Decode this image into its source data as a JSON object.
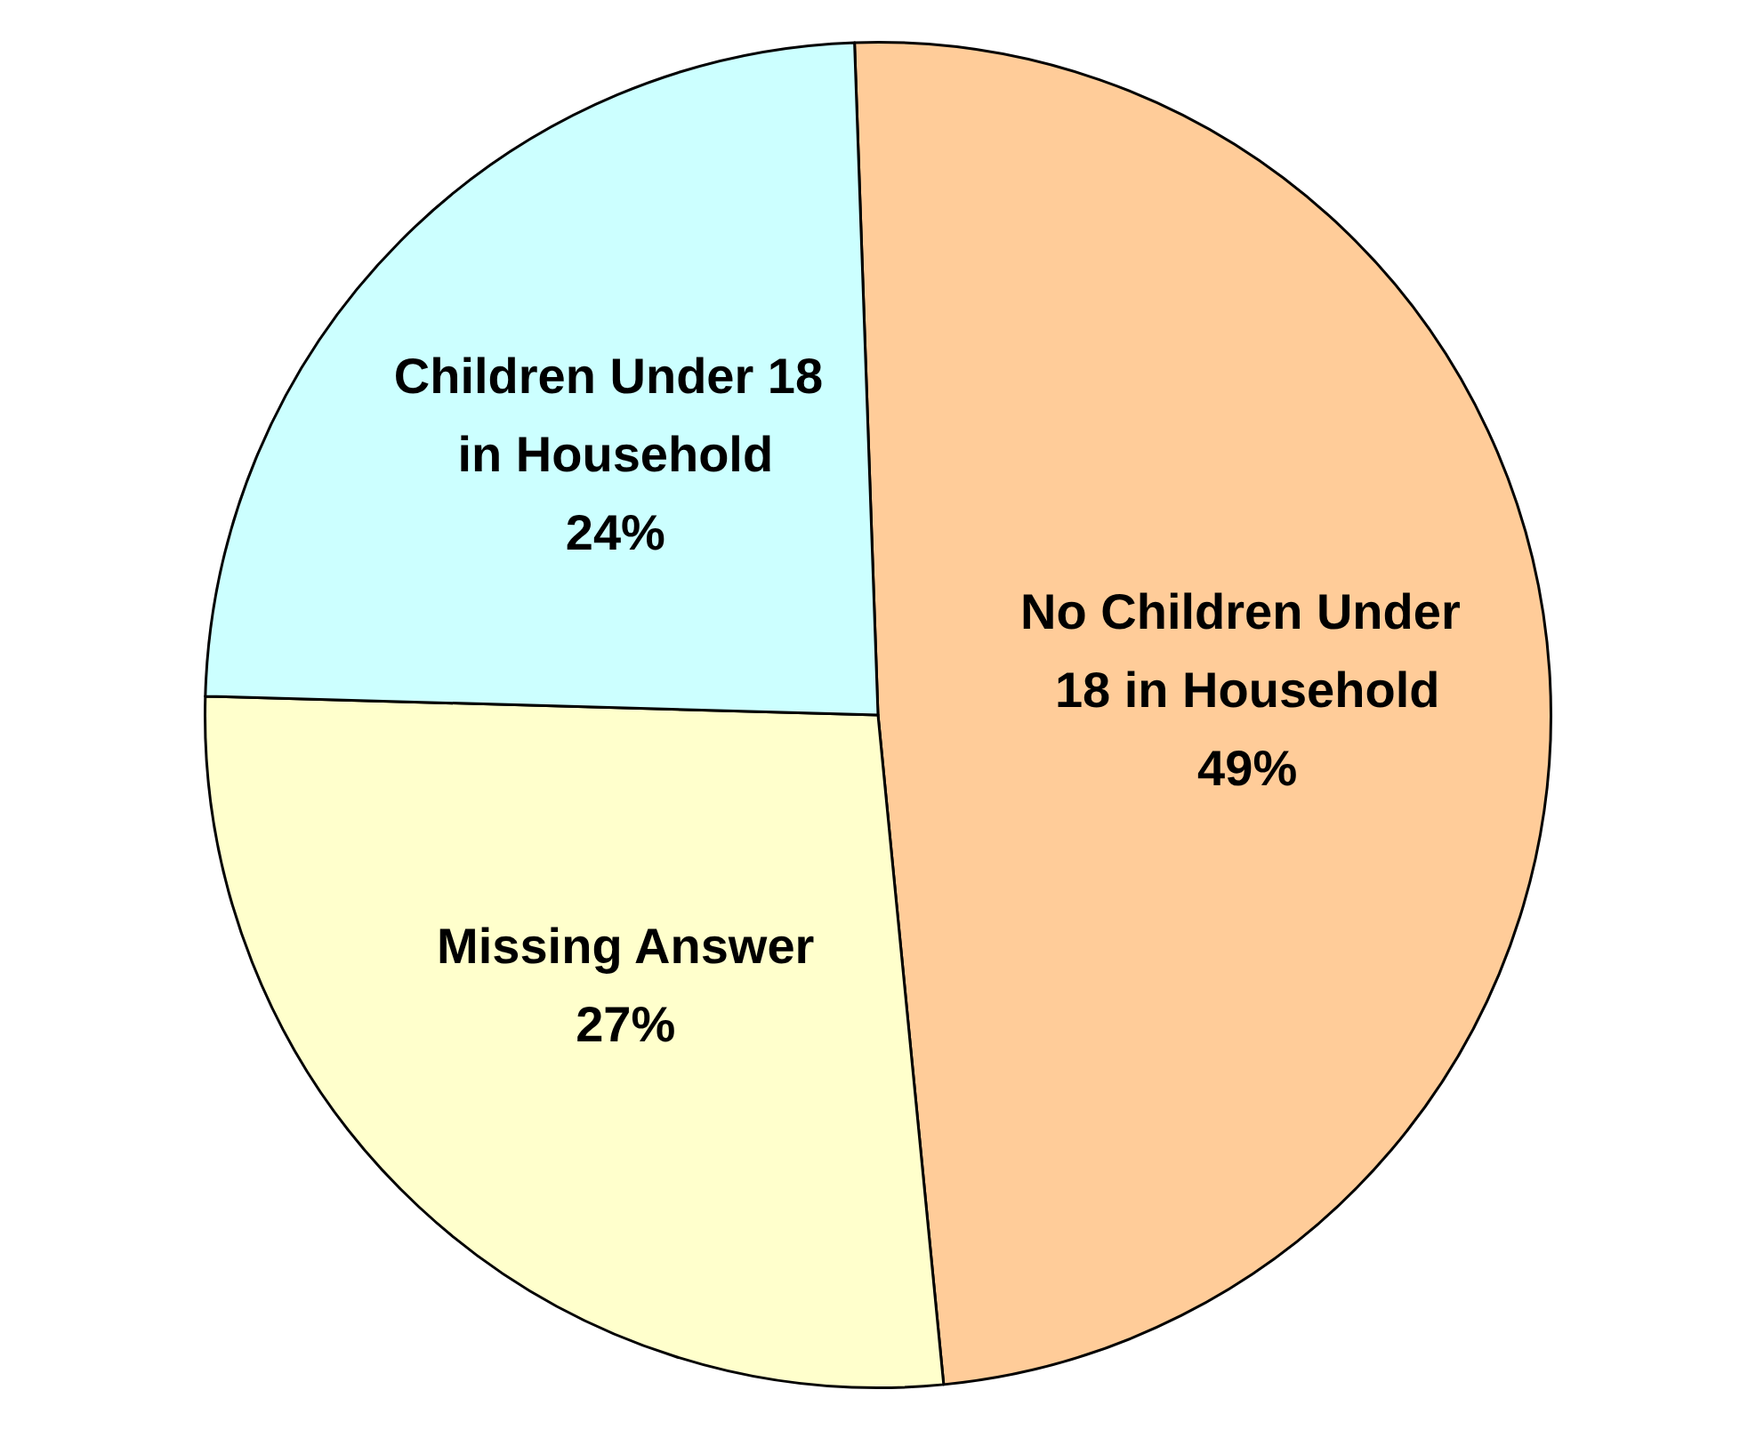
{
  "chart_data": {
    "type": "pie",
    "categories": [
      "No Children Under 18 in Household",
      "Missing Answer",
      "Children Under 18 in Household"
    ],
    "values": [
      49,
      27,
      24
    ],
    "colors": [
      "#ffcc99",
      "#ffffcc",
      "#ccffff"
    ],
    "value_labels": [
      "49%",
      "27%",
      "24%"
    ]
  }
}
